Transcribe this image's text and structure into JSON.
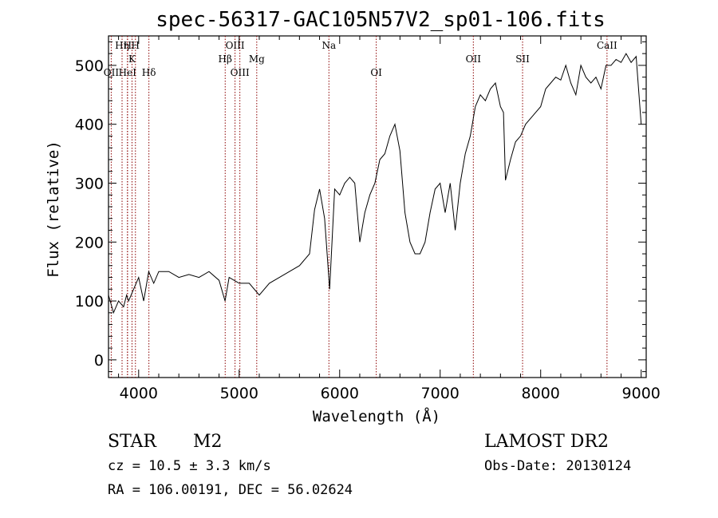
{
  "chart_data": {
    "type": "line",
    "title": "spec-56317-GAC105N57V2_sp01-106.fits",
    "xlabel": "Wavelength (Å)",
    "ylabel": "Flux (relative)",
    "xlim": [
      3700,
      9050
    ],
    "ylim": [
      -30,
      550
    ],
    "x_ticks": [
      4000,
      5000,
      6000,
      7000,
      8000,
      9000
    ],
    "y_ticks": [
      0,
      100,
      200,
      300,
      400,
      500
    ],
    "grid": false,
    "line_color": "#000000",
    "marker_color": "#8b0000",
    "series": [
      {
        "x": [
          3700,
          3750,
          3800,
          3850,
          3880,
          3900,
          3950,
          4000,
          4050,
          4100,
          4150,
          4200,
          4300,
          4400,
          4500,
          4600,
          4700,
          4800,
          4860,
          4900,
          5000,
          5100,
          5200,
          5300,
          5400,
          5500,
          5600,
          5700,
          5750,
          5800,
          5850,
          5900,
          5950,
          6000,
          6050,
          6100,
          6150,
          6200,
          6250,
          6300,
          6350,
          6400,
          6450,
          6500,
          6550,
          6600,
          6650,
          6700,
          6750,
          6800,
          6850,
          6900,
          6950,
          7000,
          7050,
          7100,
          7150,
          7200,
          7250,
          7300,
          7350,
          7400,
          7450,
          7500,
          7550,
          7600,
          7630,
          7650,
          7700,
          7750,
          7800,
          7850,
          7900,
          7950,
          8000,
          8050,
          8100,
          8150,
          8200,
          8250,
          8300,
          8350,
          8400,
          8450,
          8500,
          8550,
          8600,
          8650,
          8700,
          8750,
          8800,
          8850,
          8900,
          8950,
          9000
        ],
        "y": [
          110,
          80,
          100,
          90,
          110,
          100,
          120,
          140,
          100,
          150,
          130,
          150,
          150,
          140,
          145,
          140,
          150,
          135,
          100,
          140,
          130,
          130,
          110,
          130,
          140,
          150,
          160,
          180,
          255,
          290,
          240,
          120,
          290,
          280,
          300,
          310,
          300,
          200,
          250,
          280,
          300,
          340,
          350,
          380,
          400,
          355,
          250,
          200,
          180,
          180,
          200,
          250,
          290,
          300,
          250,
          300,
          220,
          300,
          350,
          380,
          430,
          450,
          440,
          460,
          470,
          430,
          420,
          305,
          340,
          370,
          380,
          400,
          410,
          420,
          430,
          460,
          470,
          480,
          475,
          500,
          470,
          450,
          500,
          480,
          470,
          480,
          460,
          500,
          500,
          510,
          505,
          520,
          505,
          515,
          400
        ]
      }
    ],
    "line_markers": [
      {
        "label": "OII",
        "wavelength": 3727,
        "row": 3
      },
      {
        "label": "Hη",
        "wavelength": 3835,
        "row": 1
      },
      {
        "label": "H",
        "wavelength": 3889,
        "row": 1
      },
      {
        "label": "HeI",
        "wavelength": 3889,
        "row": 3
      },
      {
        "label": "K",
        "wavelength": 3934,
        "row": 2
      },
      {
        "label": "H",
        "wavelength": 3968,
        "row": 1
      },
      {
        "label": "Hδ",
        "wavelength": 4102,
        "row": 3
      },
      {
        "label": "Hβ",
        "wavelength": 4861,
        "row": 2
      },
      {
        "label": "OIII",
        "wavelength": 4959,
        "row": 1
      },
      {
        "label": "OIII",
        "wavelength": 5007,
        "row": 3
      },
      {
        "label": "Mg",
        "wavelength": 5175,
        "row": 2
      },
      {
        "label": "Na",
        "wavelength": 5893,
        "row": 1
      },
      {
        "label": "OI",
        "wavelength": 6364,
        "row": 3
      },
      {
        "label": "OII",
        "wavelength": 7330,
        "row": 2
      },
      {
        "label": "SII",
        "wavelength": 7820,
        "row": 2
      },
      {
        "label": "CaII",
        "wavelength": 8660,
        "row": 1
      }
    ]
  },
  "info": {
    "object_class": "STAR",
    "subclass": "M2",
    "redshift": "cz = 10.5 ± 3.3 km/s",
    "coordinates": "RA = 106.00191, DEC =  56.02624",
    "survey": "LAMOST DR2",
    "obs_date": "Obs-Date: 20130124"
  }
}
